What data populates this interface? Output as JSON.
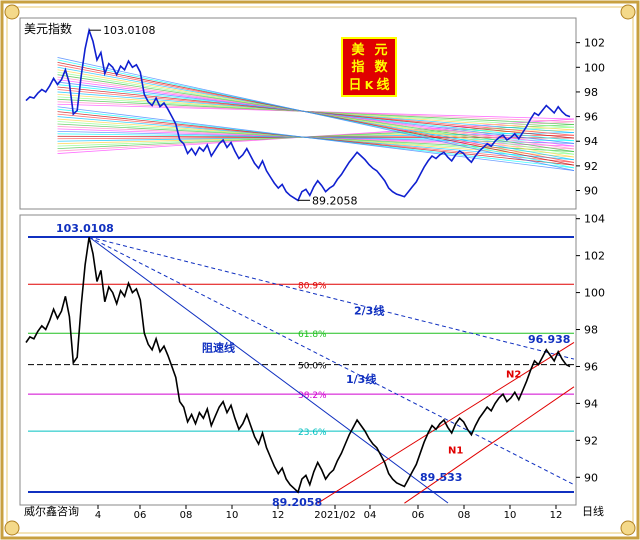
{
  "chart_data": [
    {
      "type": "line",
      "title_chip": [
        "美",
        "元",
        "指",
        "数",
        "日",
        "K",
        "线"
      ],
      "panel_label": "美元指数",
      "ylim": [
        88.5,
        104
      ],
      "yticks": [
        90,
        92,
        94,
        96,
        98,
        100,
        102
      ],
      "annotations": [
        {
          "text": "103.0108",
          "value": 103.0108
        },
        {
          "text": "89.2058",
          "value": 89.2058
        }
      ],
      "series": [
        {
          "values": [
            97.3,
            97.6,
            97.5,
            97.9,
            98.2,
            98.0,
            98.5,
            99.1,
            98.6,
            99.0,
            99.8,
            98.7,
            96.2,
            96.5,
            99.3,
            101.5,
            103.0,
            102.1,
            100.6,
            101.2,
            99.5,
            100.3,
            100.0,
            99.4,
            100.1,
            99.8,
            100.5,
            100.0,
            100.2,
            99.6,
            97.8,
            97.2,
            96.9,
            97.5,
            96.8,
            97.1,
            96.6,
            96.0,
            95.4,
            94.1,
            93.8,
            93.0,
            93.4,
            92.9,
            93.5,
            93.2,
            93.7,
            92.8,
            93.3,
            93.8,
            94.1,
            93.5,
            93.9,
            93.2,
            92.6,
            92.9,
            93.4,
            92.8,
            92.2,
            91.8,
            92.4,
            91.6,
            91.1,
            90.6,
            90.2,
            90.5,
            89.9,
            89.6,
            89.4,
            89.2,
            89.9,
            90.1,
            89.6,
            90.3,
            90.8,
            90.4,
            89.9,
            90.2,
            90.4,
            90.9,
            91.3,
            91.8,
            92.3,
            92.7,
            93.1,
            92.8,
            92.5,
            92.1,
            91.8,
            91.6,
            91.2,
            90.8,
            90.2,
            89.9,
            89.7,
            89.6,
            89.5,
            89.9,
            90.3,
            90.7,
            91.3,
            91.9,
            92.4,
            92.8,
            92.6,
            92.9,
            93.1,
            92.7,
            92.4,
            92.9,
            93.2,
            93.0,
            92.6,
            92.3,
            92.8,
            93.2,
            93.5,
            93.8,
            93.6,
            94.0,
            94.3,
            94.5,
            94.1,
            94.3,
            94.6,
            94.2,
            94.7,
            95.2,
            95.8,
            96.3,
            96.1,
            96.5,
            96.9,
            96.6,
            96.3,
            96.8,
            96.4,
            96.1,
            96.0
          ]
        }
      ]
    },
    {
      "type": "line",
      "xlabel": "日线",
      "ylim": [
        88.5,
        104.2
      ],
      "yticks": [
        90,
        92,
        94,
        96,
        98,
        100,
        102,
        104
      ],
      "xticks": [
        "4",
        "06",
        "08",
        "10",
        "12",
        "2021/02",
        "04",
        "06",
        "08",
        "10",
        "12"
      ],
      "fibonacci_levels": [
        {
          "label": "80.9%",
          "value": 100.45
        },
        {
          "label": "61.8%",
          "value": 97.8
        },
        {
          "label": "50.0%",
          "value": 96.1
        },
        {
          "label": "38.2%",
          "value": 94.5
        },
        {
          "label": "23.6%",
          "value": 92.5
        }
      ],
      "annotations": [
        {
          "text": "103.0108",
          "value": 103.0108
        },
        {
          "text": "89.2058",
          "value": 89.2058
        },
        {
          "text": "89.533",
          "value": 89.533
        },
        {
          "text": "96.938",
          "value": 96.938
        },
        {
          "text": "阻速线"
        },
        {
          "text": "2/3线"
        },
        {
          "text": "1/3线"
        },
        {
          "text": "N1"
        },
        {
          "text": "N2"
        }
      ],
      "series": [
        {
          "values": [
            97.3,
            97.6,
            97.5,
            97.9,
            98.2,
            98.0,
            98.5,
            99.1,
            98.6,
            99.0,
            99.8,
            98.7,
            96.2,
            96.5,
            99.3,
            101.5,
            103.0,
            102.1,
            100.6,
            101.2,
            99.5,
            100.3,
            100.0,
            99.4,
            100.1,
            99.8,
            100.5,
            100.0,
            100.2,
            99.6,
            97.8,
            97.2,
            96.9,
            97.5,
            96.8,
            97.1,
            96.6,
            96.0,
            95.4,
            94.1,
            93.8,
            93.0,
            93.4,
            92.9,
            93.5,
            93.2,
            93.7,
            92.8,
            93.3,
            93.8,
            94.1,
            93.5,
            93.9,
            93.2,
            92.6,
            92.9,
            93.4,
            92.8,
            92.2,
            91.8,
            92.4,
            91.6,
            91.1,
            90.6,
            90.2,
            90.5,
            89.9,
            89.6,
            89.4,
            89.2,
            89.9,
            90.1,
            89.6,
            90.3,
            90.8,
            90.4,
            89.9,
            90.2,
            90.4,
            90.9,
            91.3,
            91.8,
            92.3,
            92.7,
            93.1,
            92.8,
            92.5,
            92.1,
            91.8,
            91.6,
            91.2,
            90.8,
            90.2,
            89.9,
            89.7,
            89.6,
            89.5,
            89.9,
            90.3,
            90.7,
            91.3,
            91.9,
            92.4,
            92.8,
            92.6,
            92.9,
            93.1,
            92.7,
            92.4,
            92.9,
            93.2,
            93.0,
            92.6,
            92.3,
            92.8,
            93.2,
            93.5,
            93.8,
            93.6,
            94.0,
            94.3,
            94.5,
            94.1,
            94.3,
            94.6,
            94.2,
            94.7,
            95.2,
            95.8,
            96.3,
            96.1,
            96.5,
            96.9,
            96.6,
            96.3,
            96.8,
            96.4,
            96.1,
            96.0
          ]
        }
      ]
    }
  ],
  "footer": {
    "company": "威尔鑫咨询"
  },
  "colors": {
    "frame": "#c8a040",
    "bg": "#ffffff",
    "accent_red": "#e00000",
    "blue": "#1030c0",
    "chip_text": "#ffff00"
  }
}
